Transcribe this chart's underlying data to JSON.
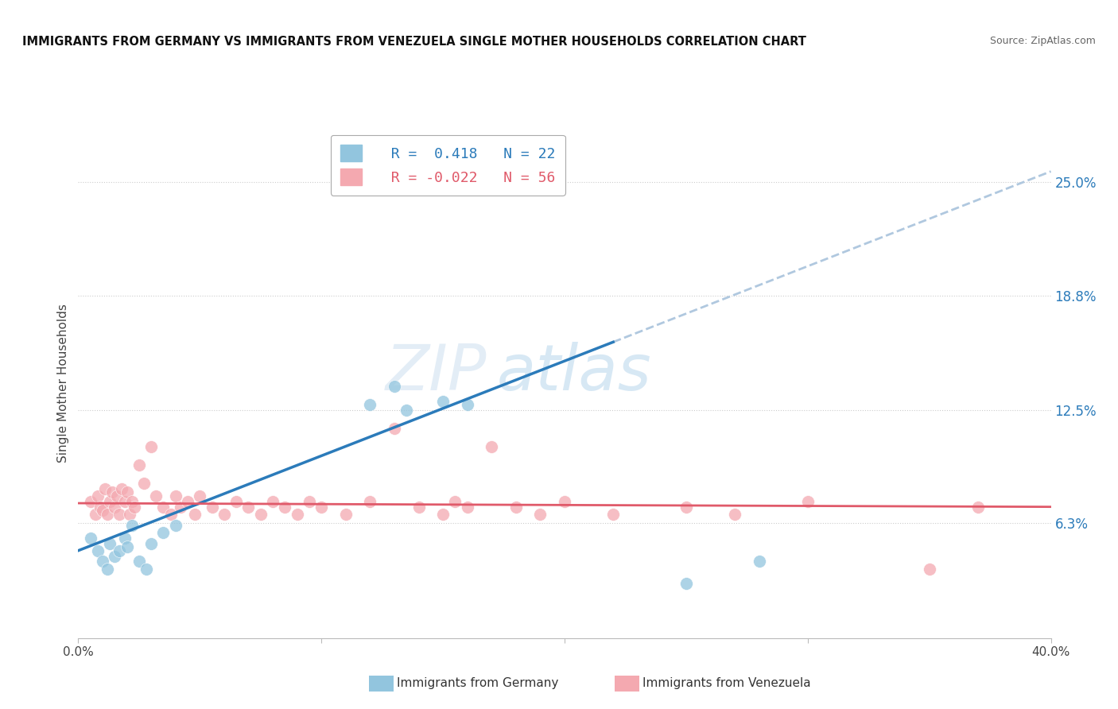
{
  "title": "IMMIGRANTS FROM GERMANY VS IMMIGRANTS FROM VENEZUELA SINGLE MOTHER HOUSEHOLDS CORRELATION CHART",
  "source": "Source: ZipAtlas.com",
  "ylabel": "Single Mother Households",
  "ytick_labels": [
    "6.3%",
    "12.5%",
    "18.8%",
    "25.0%"
  ],
  "ytick_values": [
    0.063,
    0.125,
    0.188,
    0.25
  ],
  "xlim": [
    0.0,
    0.4
  ],
  "ylim": [
    0.0,
    0.28
  ],
  "legend_germany": "R =  0.418   N = 22",
  "legend_venezuela": "R = -0.022   N = 56",
  "germany_color": "#92c5de",
  "venezuela_color": "#f4a9b0",
  "germany_line_color": "#2b7bba",
  "venezuela_line_color": "#e05a6a",
  "dashed_line_color": "#b0c8df",
  "watermark_zip": "ZIP",
  "watermark_atlas": "atlas",
  "germany_slope": 0.52,
  "germany_intercept": 0.048,
  "venezuela_slope": -0.005,
  "venezuela_intercept": 0.074,
  "germany_points": [
    [
      0.005,
      0.055
    ],
    [
      0.008,
      0.048
    ],
    [
      0.01,
      0.042
    ],
    [
      0.012,
      0.038
    ],
    [
      0.013,
      0.052
    ],
    [
      0.015,
      0.045
    ],
    [
      0.017,
      0.048
    ],
    [
      0.019,
      0.055
    ],
    [
      0.02,
      0.05
    ],
    [
      0.022,
      0.062
    ],
    [
      0.025,
      0.042
    ],
    [
      0.028,
      0.038
    ],
    [
      0.03,
      0.052
    ],
    [
      0.035,
      0.058
    ],
    [
      0.04,
      0.062
    ],
    [
      0.12,
      0.128
    ],
    [
      0.13,
      0.138
    ],
    [
      0.135,
      0.125
    ],
    [
      0.15,
      0.13
    ],
    [
      0.16,
      0.128
    ],
    [
      0.25,
      0.03
    ],
    [
      0.28,
      0.042
    ]
  ],
  "venezuela_points": [
    [
      0.005,
      0.075
    ],
    [
      0.007,
      0.068
    ],
    [
      0.008,
      0.078
    ],
    [
      0.009,
      0.072
    ],
    [
      0.01,
      0.07
    ],
    [
      0.011,
      0.082
    ],
    [
      0.012,
      0.068
    ],
    [
      0.013,
      0.075
    ],
    [
      0.014,
      0.08
    ],
    [
      0.015,
      0.072
    ],
    [
      0.016,
      0.078
    ],
    [
      0.017,
      0.068
    ],
    [
      0.018,
      0.082
    ],
    [
      0.019,
      0.075
    ],
    [
      0.02,
      0.08
    ],
    [
      0.021,
      0.068
    ],
    [
      0.022,
      0.075
    ],
    [
      0.023,
      0.072
    ],
    [
      0.025,
      0.095
    ],
    [
      0.027,
      0.085
    ],
    [
      0.03,
      0.105
    ],
    [
      0.032,
      0.078
    ],
    [
      0.035,
      0.072
    ],
    [
      0.038,
      0.068
    ],
    [
      0.04,
      0.078
    ],
    [
      0.042,
      0.072
    ],
    [
      0.045,
      0.075
    ],
    [
      0.048,
      0.068
    ],
    [
      0.05,
      0.078
    ],
    [
      0.055,
      0.072
    ],
    [
      0.06,
      0.068
    ],
    [
      0.065,
      0.075
    ],
    [
      0.07,
      0.072
    ],
    [
      0.075,
      0.068
    ],
    [
      0.08,
      0.075
    ],
    [
      0.085,
      0.072
    ],
    [
      0.09,
      0.068
    ],
    [
      0.095,
      0.075
    ],
    [
      0.1,
      0.072
    ],
    [
      0.11,
      0.068
    ],
    [
      0.12,
      0.075
    ],
    [
      0.13,
      0.115
    ],
    [
      0.14,
      0.072
    ],
    [
      0.15,
      0.068
    ],
    [
      0.155,
      0.075
    ],
    [
      0.16,
      0.072
    ],
    [
      0.17,
      0.105
    ],
    [
      0.18,
      0.072
    ],
    [
      0.19,
      0.068
    ],
    [
      0.2,
      0.075
    ],
    [
      0.22,
      0.068
    ],
    [
      0.25,
      0.072
    ],
    [
      0.27,
      0.068
    ],
    [
      0.3,
      0.075
    ],
    [
      0.35,
      0.038
    ],
    [
      0.37,
      0.072
    ]
  ]
}
